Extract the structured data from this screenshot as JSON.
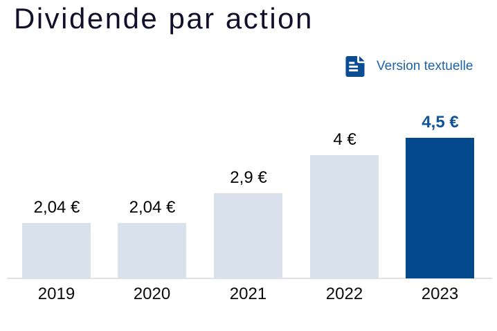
{
  "header": {
    "title": "Dividende par action",
    "text_version": {
      "label": "Version textuelle",
      "icon": "document-icon"
    }
  },
  "colors": {
    "background": "#ffffff",
    "title": "#10102d",
    "link": "#1e62a7",
    "icon": "#0b4d92",
    "bar_default": "#d9e2ec",
    "bar_highlight": "#04498c",
    "value_label": "#000000",
    "value_label_highlight": "#0e5496",
    "tick_label": "#0a0a0a",
    "axis_line": "#e0e0e0"
  },
  "chart_data": {
    "type": "bar",
    "title": "Dividende par action",
    "categories": [
      "2019",
      "2020",
      "2021",
      "2022",
      "2023"
    ],
    "values": [
      2.04,
      2.04,
      2.9,
      4,
      4.5
    ],
    "value_labels": [
      "2,04 €",
      "2,04 €",
      "2,9 €",
      "4 €",
      "4,5 €"
    ],
    "unit": "€",
    "highlighted_index": 4,
    "highlighted_year": "2023",
    "xlabel": "",
    "ylabel": "",
    "ylim": [
      0,
      5
    ],
    "grid": false,
    "legend": false,
    "orientation": "vertical"
  }
}
